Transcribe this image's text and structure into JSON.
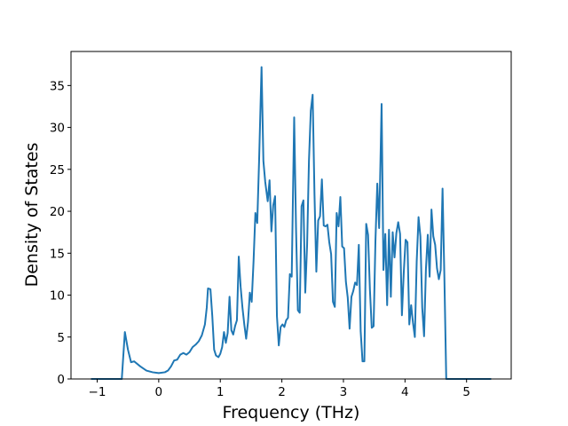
{
  "chart_data": {
    "type": "line",
    "xlabel": "Frequency (THz)",
    "ylabel": "Density of States",
    "color": "#1f77b4",
    "x": [
      -1.1,
      -0.6,
      -0.55,
      -0.5,
      -0.45,
      -0.4,
      -0.3,
      -0.2,
      -0.1,
      0,
      0.1,
      0.15,
      0.2,
      0.25,
      0.3,
      0.35,
      0.4,
      0.45,
      0.5,
      0.55,
      0.6,
      0.65,
      0.7,
      0.75,
      0.78,
      0.8,
      0.84,
      0.87,
      0.9,
      0.93,
      0.97,
      1.0,
      1.03,
      1.06,
      1.09,
      1.12,
      1.15,
      1.18,
      1.21,
      1.24,
      1.27,
      1.3,
      1.33,
      1.36,
      1.39,
      1.42,
      1.45,
      1.48,
      1.51,
      1.54,
      1.57,
      1.6,
      1.63,
      1.67,
      1.7,
      1.73,
      1.77,
      1.8,
      1.83,
      1.86,
      1.89,
      1.92,
      1.95,
      1.98,
      2.01,
      2.04,
      2.07,
      2.1,
      2.13,
      2.16,
      2.2,
      2.23,
      2.26,
      2.29,
      2.32,
      2.35,
      2.38,
      2.41,
      2.44,
      2.47,
      2.5,
      2.53,
      2.56,
      2.59,
      2.62,
      2.65,
      2.68,
      2.71,
      2.74,
      2.77,
      2.8,
      2.83,
      2.86,
      2.89,
      2.92,
      2.95,
      2.98,
      3.01,
      3.04,
      3.07,
      3.1,
      3.13,
      3.16,
      3.19,
      3.22,
      3.25,
      3.28,
      3.31,
      3.34,
      3.37,
      3.4,
      3.43,
      3.46,
      3.49,
      3.52,
      3.55,
      3.58,
      3.62,
      3.65,
      3.68,
      3.71,
      3.74,
      3.77,
      3.8,
      3.83,
      3.86,
      3.89,
      3.92,
      3.95,
      3.98,
      4.01,
      4.04,
      4.07,
      4.1,
      4.13,
      4.16,
      4.19,
      4.22,
      4.25,
      4.28,
      4.31,
      4.34,
      4.37,
      4.4,
      4.43,
      4.46,
      4.49,
      4.52,
      4.55,
      4.58,
      4.61,
      4.64,
      4.67,
      5.4
    ],
    "values": [
      0,
      0,
      5.6,
      3.5,
      2.0,
      2.1,
      1.5,
      1.0,
      0.8,
      0.7,
      0.8,
      1.0,
      1.5,
      2.2,
      2.3,
      2.9,
      3.1,
      2.9,
      3.2,
      3.8,
      4.1,
      4.5,
      5.2,
      6.5,
      8.5,
      10.8,
      10.7,
      7.5,
      3.5,
      2.8,
      2.6,
      3.0,
      3.8,
      5.6,
      4.3,
      5.5,
      9.8,
      5.8,
      5.3,
      6.3,
      7.0,
      14.6,
      11.0,
      8.5,
      6.5,
      4.8,
      6.8,
      10.3,
      9.2,
      14,
      19.8,
      18.6,
      26,
      37.2,
      26,
      23.5,
      21.2,
      23.7,
      17.6,
      20.7,
      21.8,
      7.5,
      4.0,
      6.2,
      6.5,
      6.2,
      7.0,
      7.3,
      12.5,
      12.2,
      31.2,
      18,
      8.2,
      7.9,
      20.6,
      21.3,
      10.3,
      16,
      26,
      32,
      33.9,
      22,
      12.8,
      18.9,
      19.4,
      23.8,
      18.3,
      18.2,
      18.4,
      16.3,
      14.9,
      9.2,
      8.6,
      19.8,
      18.2,
      21.7,
      15.8,
      15.6,
      11.6,
      9.7,
      6.0,
      9.8,
      10.5,
      11.5,
      11.2,
      16,
      5.7,
      2.1,
      2.1,
      18.5,
      17.2,
      10.7,
      6.1,
      6.3,
      16.5,
      23.3,
      18,
      32.8,
      13,
      17.3,
      8.8,
      17.8,
      9.8,
      17.5,
      14.5,
      17.4,
      18.7,
      17.3,
      7.6,
      12.7,
      16.6,
      16.3,
      6.5,
      8.8,
      6.7,
      5.0,
      14,
      19.3,
      17,
      8.5,
      5.1,
      13.1,
      17.2,
      12.2,
      20.2,
      17,
      16,
      13.2,
      11.9,
      13,
      22.7,
      12,
      0,
      0
    ],
    "xlim": [
      -1.425,
      5.725
    ],
    "xticks": [
      {
        "value": -1,
        "label": "−1"
      },
      0,
      1,
      2,
      3,
      4,
      5
    ],
    "ylim": [
      0,
      39.06
    ],
    "yticks": [
      0,
      5,
      10,
      15,
      20,
      25,
      30,
      35
    ]
  }
}
